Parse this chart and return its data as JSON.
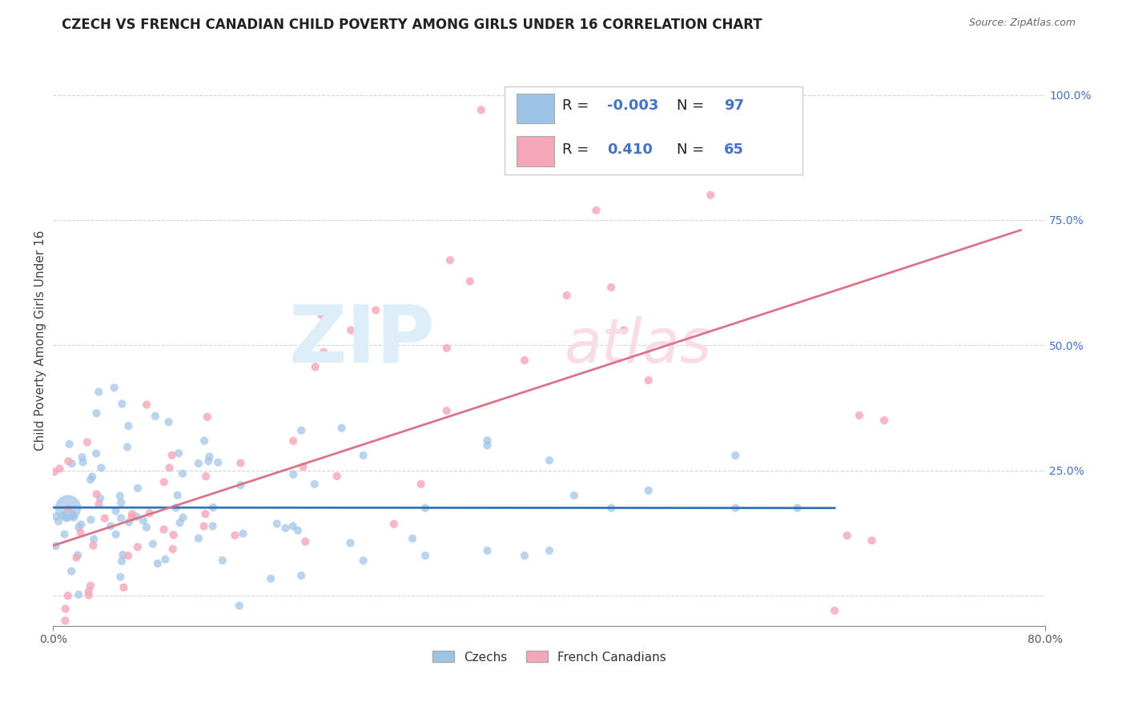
{
  "title": "CZECH VS FRENCH CANADIAN CHILD POVERTY AMONG GIRLS UNDER 16 CORRELATION CHART",
  "source": "Source: ZipAtlas.com",
  "ylabel": "Child Poverty Among Girls Under 16",
  "ytick_vals": [
    0.0,
    0.25,
    0.5,
    0.75,
    1.0
  ],
  "ytick_labels": [
    "",
    "25.0%",
    "50.0%",
    "75.0%",
    "100.0%"
  ],
  "xlim": [
    0.0,
    0.8
  ],
  "ylim": [
    -0.06,
    1.08
  ],
  "czech_color": "#9dc3e6",
  "french_color": "#f4a7b9",
  "czech_line_color": "#2e74b5",
  "french_line_color": "#d9748a",
  "legend_R_czech": "-0.003",
  "legend_N_czech": "97",
  "legend_R_french": "0.410",
  "legend_N_french": "65",
  "background_color": "#ffffff",
  "grid_color": "#d0d0d0",
  "text_color": "#222222",
  "blue_color": "#4472c4",
  "watermark_blue": "#ddeef8",
  "watermark_pink": "#f8dde6"
}
